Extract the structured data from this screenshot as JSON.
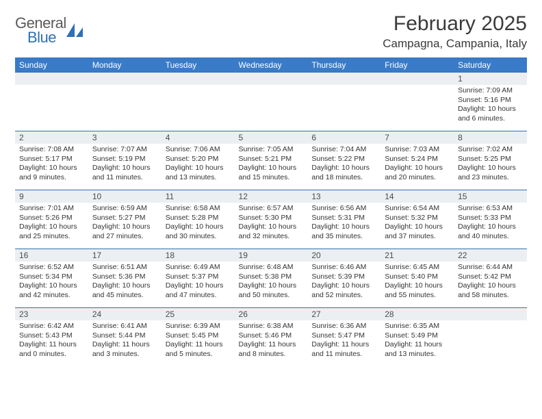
{
  "brand": {
    "word1": "General",
    "word2": "Blue"
  },
  "title": "February 2025",
  "location": "Campagna, Campania, Italy",
  "colors": {
    "header_bg": "#3a7bc8",
    "header_text": "#ffffff",
    "border": "#2f6fb6",
    "daynum_bg": "#eceff1",
    "body_text": "#333333",
    "brand_gray": "#5a5a5a",
    "brand_blue": "#2f6fb6"
  },
  "day_headers": [
    "Sunday",
    "Monday",
    "Tuesday",
    "Wednesday",
    "Thursday",
    "Friday",
    "Saturday"
  ],
  "weeks": [
    [
      {
        "n": "",
        "sr": "",
        "ss": "",
        "dl": ""
      },
      {
        "n": "",
        "sr": "",
        "ss": "",
        "dl": ""
      },
      {
        "n": "",
        "sr": "",
        "ss": "",
        "dl": ""
      },
      {
        "n": "",
        "sr": "",
        "ss": "",
        "dl": ""
      },
      {
        "n": "",
        "sr": "",
        "ss": "",
        "dl": ""
      },
      {
        "n": "",
        "sr": "",
        "ss": "",
        "dl": ""
      },
      {
        "n": "1",
        "sr": "Sunrise: 7:09 AM",
        "ss": "Sunset: 5:16 PM",
        "dl": "Daylight: 10 hours and 6 minutes."
      }
    ],
    [
      {
        "n": "2",
        "sr": "Sunrise: 7:08 AM",
        "ss": "Sunset: 5:17 PM",
        "dl": "Daylight: 10 hours and 9 minutes."
      },
      {
        "n": "3",
        "sr": "Sunrise: 7:07 AM",
        "ss": "Sunset: 5:19 PM",
        "dl": "Daylight: 10 hours and 11 minutes."
      },
      {
        "n": "4",
        "sr": "Sunrise: 7:06 AM",
        "ss": "Sunset: 5:20 PM",
        "dl": "Daylight: 10 hours and 13 minutes."
      },
      {
        "n": "5",
        "sr": "Sunrise: 7:05 AM",
        "ss": "Sunset: 5:21 PM",
        "dl": "Daylight: 10 hours and 15 minutes."
      },
      {
        "n": "6",
        "sr": "Sunrise: 7:04 AM",
        "ss": "Sunset: 5:22 PM",
        "dl": "Daylight: 10 hours and 18 minutes."
      },
      {
        "n": "7",
        "sr": "Sunrise: 7:03 AM",
        "ss": "Sunset: 5:24 PM",
        "dl": "Daylight: 10 hours and 20 minutes."
      },
      {
        "n": "8",
        "sr": "Sunrise: 7:02 AM",
        "ss": "Sunset: 5:25 PM",
        "dl": "Daylight: 10 hours and 23 minutes."
      }
    ],
    [
      {
        "n": "9",
        "sr": "Sunrise: 7:01 AM",
        "ss": "Sunset: 5:26 PM",
        "dl": "Daylight: 10 hours and 25 minutes."
      },
      {
        "n": "10",
        "sr": "Sunrise: 6:59 AM",
        "ss": "Sunset: 5:27 PM",
        "dl": "Daylight: 10 hours and 27 minutes."
      },
      {
        "n": "11",
        "sr": "Sunrise: 6:58 AM",
        "ss": "Sunset: 5:28 PM",
        "dl": "Daylight: 10 hours and 30 minutes."
      },
      {
        "n": "12",
        "sr": "Sunrise: 6:57 AM",
        "ss": "Sunset: 5:30 PM",
        "dl": "Daylight: 10 hours and 32 minutes."
      },
      {
        "n": "13",
        "sr": "Sunrise: 6:56 AM",
        "ss": "Sunset: 5:31 PM",
        "dl": "Daylight: 10 hours and 35 minutes."
      },
      {
        "n": "14",
        "sr": "Sunrise: 6:54 AM",
        "ss": "Sunset: 5:32 PM",
        "dl": "Daylight: 10 hours and 37 minutes."
      },
      {
        "n": "15",
        "sr": "Sunrise: 6:53 AM",
        "ss": "Sunset: 5:33 PM",
        "dl": "Daylight: 10 hours and 40 minutes."
      }
    ],
    [
      {
        "n": "16",
        "sr": "Sunrise: 6:52 AM",
        "ss": "Sunset: 5:34 PM",
        "dl": "Daylight: 10 hours and 42 minutes."
      },
      {
        "n": "17",
        "sr": "Sunrise: 6:51 AM",
        "ss": "Sunset: 5:36 PM",
        "dl": "Daylight: 10 hours and 45 minutes."
      },
      {
        "n": "18",
        "sr": "Sunrise: 6:49 AM",
        "ss": "Sunset: 5:37 PM",
        "dl": "Daylight: 10 hours and 47 minutes."
      },
      {
        "n": "19",
        "sr": "Sunrise: 6:48 AM",
        "ss": "Sunset: 5:38 PM",
        "dl": "Daylight: 10 hours and 50 minutes."
      },
      {
        "n": "20",
        "sr": "Sunrise: 6:46 AM",
        "ss": "Sunset: 5:39 PM",
        "dl": "Daylight: 10 hours and 52 minutes."
      },
      {
        "n": "21",
        "sr": "Sunrise: 6:45 AM",
        "ss": "Sunset: 5:40 PM",
        "dl": "Daylight: 10 hours and 55 minutes."
      },
      {
        "n": "22",
        "sr": "Sunrise: 6:44 AM",
        "ss": "Sunset: 5:42 PM",
        "dl": "Daylight: 10 hours and 58 minutes."
      }
    ],
    [
      {
        "n": "23",
        "sr": "Sunrise: 6:42 AM",
        "ss": "Sunset: 5:43 PM",
        "dl": "Daylight: 11 hours and 0 minutes."
      },
      {
        "n": "24",
        "sr": "Sunrise: 6:41 AM",
        "ss": "Sunset: 5:44 PM",
        "dl": "Daylight: 11 hours and 3 minutes."
      },
      {
        "n": "25",
        "sr": "Sunrise: 6:39 AM",
        "ss": "Sunset: 5:45 PM",
        "dl": "Daylight: 11 hours and 5 minutes."
      },
      {
        "n": "26",
        "sr": "Sunrise: 6:38 AM",
        "ss": "Sunset: 5:46 PM",
        "dl": "Daylight: 11 hours and 8 minutes."
      },
      {
        "n": "27",
        "sr": "Sunrise: 6:36 AM",
        "ss": "Sunset: 5:47 PM",
        "dl": "Daylight: 11 hours and 11 minutes."
      },
      {
        "n": "28",
        "sr": "Sunrise: 6:35 AM",
        "ss": "Sunset: 5:49 PM",
        "dl": "Daylight: 11 hours and 13 minutes."
      },
      {
        "n": "",
        "sr": "",
        "ss": "",
        "dl": ""
      }
    ]
  ]
}
